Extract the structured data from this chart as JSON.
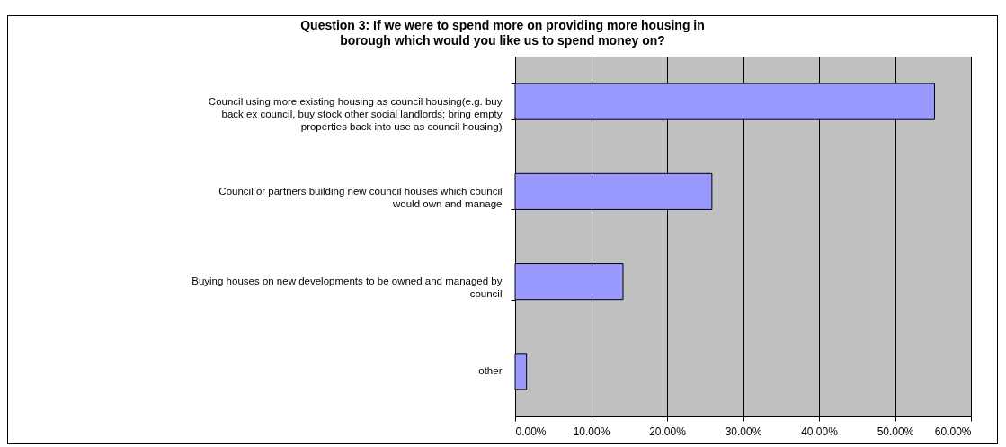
{
  "chart_data": {
    "type": "bar",
    "orientation": "horizontal",
    "title": "Question 3: If we were to spend more on providing more housing in borough which would you like us to spend money on?",
    "categories": [
      "Council using more existing housing as council housing(e.g. buy back ex council, buy stock other social landlords; bring empty properties back into use as council housing)",
      "Council or partners building new council houses which council would own and manage",
      "Buying houses on new developments to be owned and managed by council",
      "other"
    ],
    "values": [
      55.2,
      25.9,
      14.2,
      1.5
    ],
    "color": "#9999ff",
    "xlim": [
      0,
      60
    ],
    "xticks": [
      {
        "value": 0,
        "label": "0.00%"
      },
      {
        "value": 10,
        "label": "10.00%"
      },
      {
        "value": 20,
        "label": "20.00%"
      },
      {
        "value": 30,
        "label": "30.00%"
      },
      {
        "value": 40,
        "label": "40.00%"
      },
      {
        "value": 50,
        "label": "50.00%"
      },
      {
        "value": 60,
        "label": "60.00%"
      }
    ],
    "grid": "x"
  }
}
